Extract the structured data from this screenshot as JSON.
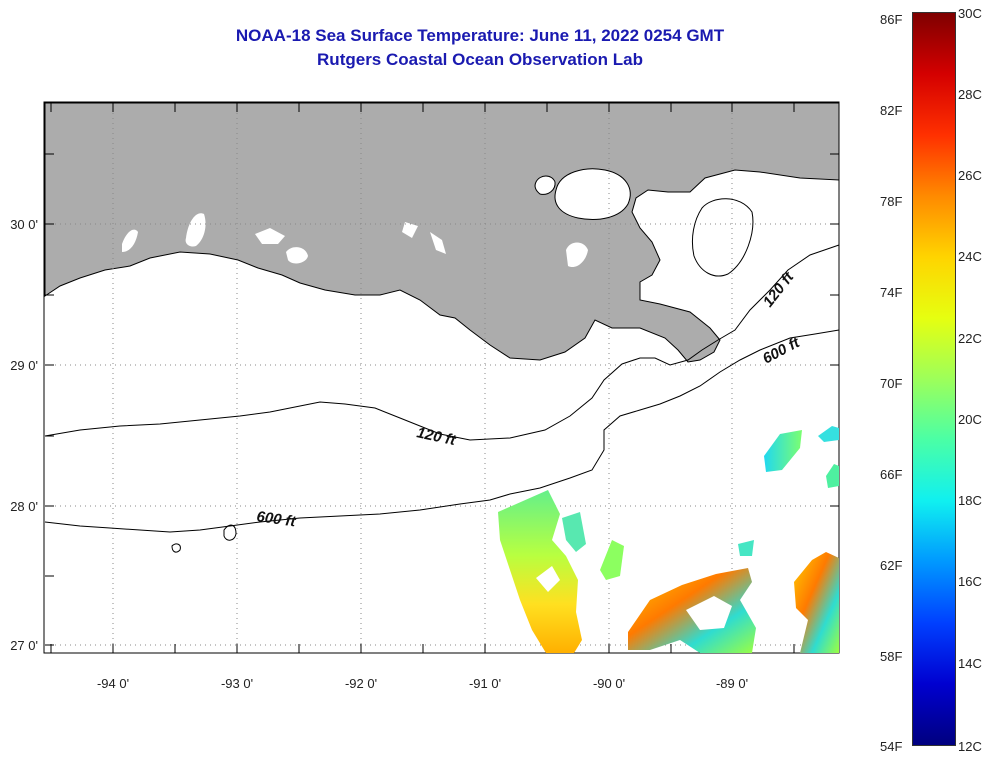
{
  "title": {
    "line1": "NOAA-18 Sea Surface Temperature:  June 11, 2022 0254 GMT",
    "line2": "Rutgers Coastal Ocean Observation Lab"
  },
  "map": {
    "lon_labels": [
      "-94 0'",
      "-93 0'",
      "-92 0'",
      "-91 0'",
      "-90 0'",
      "-89 0'"
    ],
    "lat_labels": [
      "30 0'",
      "29 0'",
      "28 0'",
      "27 0'"
    ],
    "contours": [
      {
        "label": "120 ft",
        "instance": "west"
      },
      {
        "label": "120 ft",
        "instance": "east"
      },
      {
        "label": "600 ft",
        "instance": "west"
      },
      {
        "label": "600 ft",
        "instance": "east"
      }
    ],
    "colors": {
      "land": "#acacac",
      "water": "#ffffff",
      "grid": "#888888",
      "contour": "#000000"
    }
  },
  "colorbar": {
    "fahrenheit": [
      "86F",
      "82F",
      "78F",
      "74F",
      "70F",
      "66F",
      "62F",
      "58F",
      "54F"
    ],
    "celsius": [
      "30C",
      "28C",
      "26C",
      "24C",
      "22C",
      "20C",
      "18C",
      "16C",
      "14C",
      "12C"
    ],
    "gradient": [
      "#7f0000",
      "#d40000",
      "#ff3000",
      "#ff8a00",
      "#ffd400",
      "#e6ff10",
      "#9dff5a",
      "#4affa6",
      "#10f0f0",
      "#0098ff",
      "#0040ff",
      "#0000d0",
      "#00007f"
    ]
  }
}
